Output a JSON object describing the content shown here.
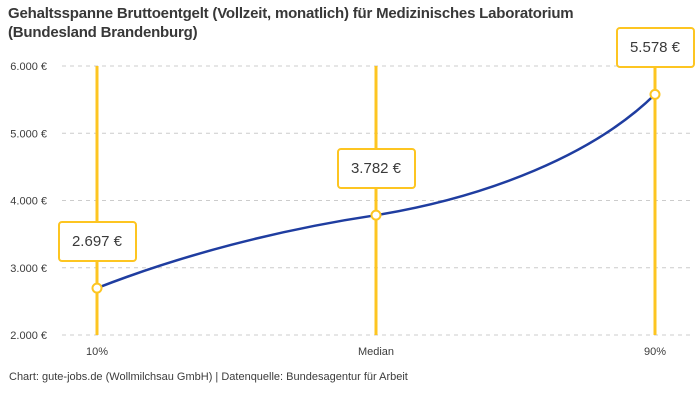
{
  "title": "Gehaltsspanne Bruttoentgelt (Vollzeit, monatlich) für Medizinisches Laboratorium (Bundesland Brandenburg)",
  "footer": "Chart: gute-jobs.de (Wollmilchsau GmbH) | Datenquelle: Bundesagentur für Arbeit",
  "chart_data": {
    "type": "line",
    "title": "Gehaltsspanne Bruttoentgelt (Vollzeit, monatlich) für Medizinisches Laboratorium (Bundesland Brandenburg)",
    "categories": [
      "10%",
      "Median",
      "90%"
    ],
    "values": [
      2697,
      3782,
      5578
    ],
    "value_labels": [
      "2.697 €",
      "3.782 €",
      "5.578 €"
    ],
    "ylim": [
      2000,
      6000
    ],
    "ytick_step": 1000,
    "ytick_labels": [
      "2.000 €",
      "3.000 €",
      "4.000 €",
      "5.000 €",
      "6.000 €"
    ],
    "grid": "horizontal-dashed",
    "legend": "none",
    "colors": {
      "line": "#1F3DA0",
      "highlight": "#FDC521",
      "marker_fill": "#ffffff",
      "grid": "#cccccc",
      "text": "#3c3c3c"
    }
  }
}
